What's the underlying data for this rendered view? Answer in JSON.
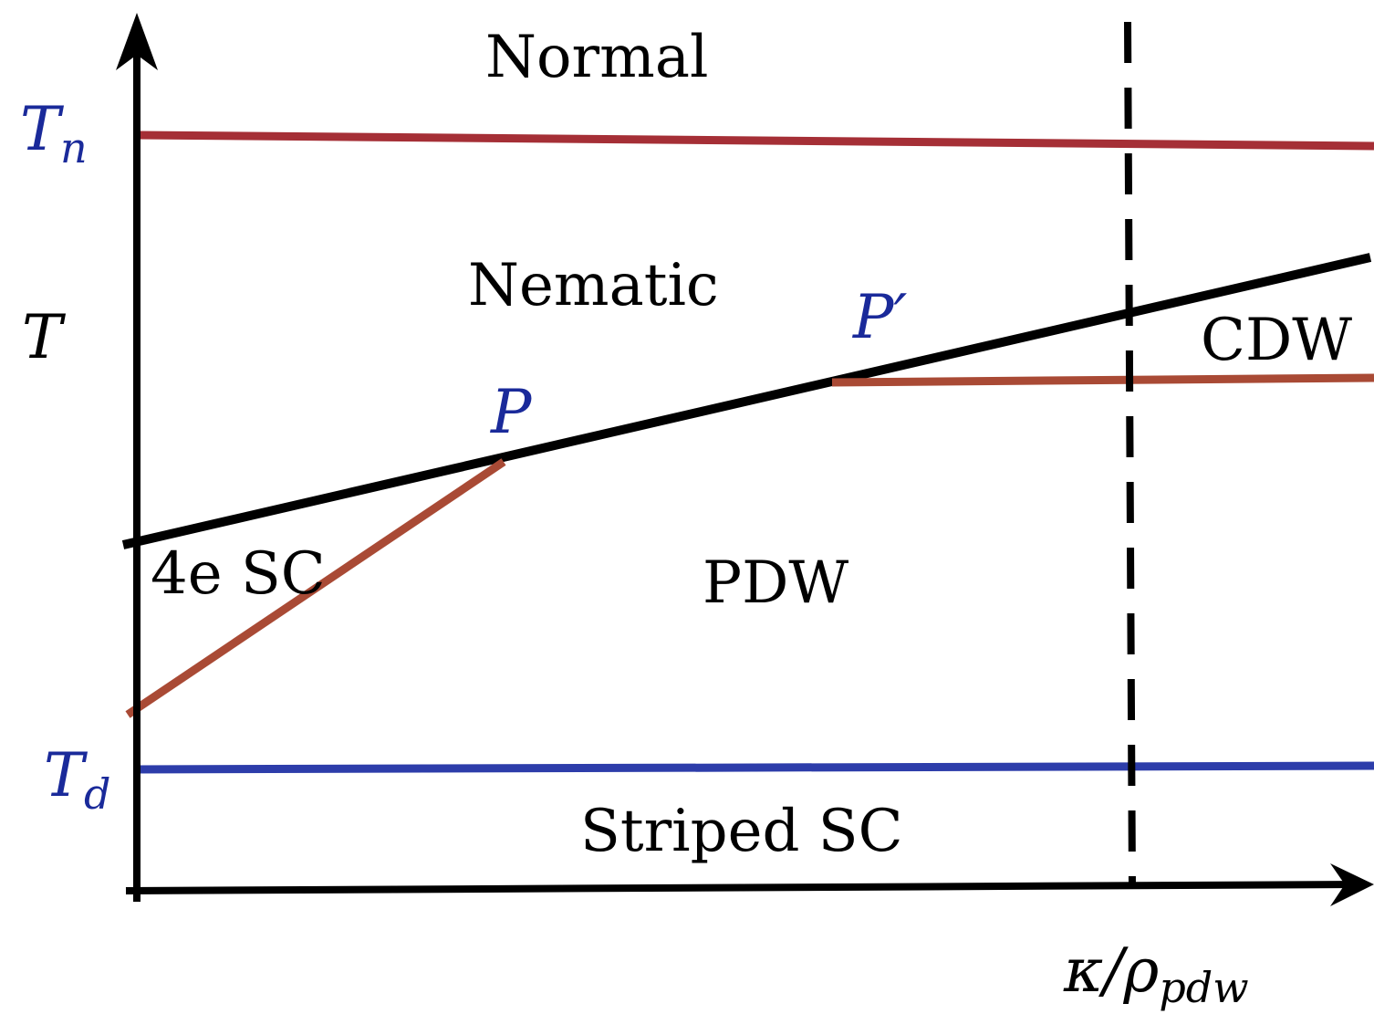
{
  "colors": {
    "axis": "#000000",
    "tn_line": "#A52F36",
    "td_line": "#2D3DAA",
    "transition_line": "#A94A35",
    "nematic_boundary": "#000000",
    "point_label": "#1A2A9A",
    "temperature_label": "#1A2A9A",
    "text": "#000000"
  },
  "axes": {
    "y_label": "T",
    "x_label_main": "κ/ρ",
    "x_label_sub": "pdw"
  },
  "temperature_marks": {
    "tn": {
      "main": "T",
      "sub": "n"
    },
    "td": {
      "main": "T",
      "sub": "d"
    }
  },
  "regions": {
    "normal": "Normal",
    "nematic": "Nematic",
    "cdw": "CDW",
    "four_e_sc": "4e SC",
    "pdw": "PDW",
    "striped_sc": "Striped SC"
  },
  "points": {
    "p": "P",
    "p_prime": "P′"
  }
}
